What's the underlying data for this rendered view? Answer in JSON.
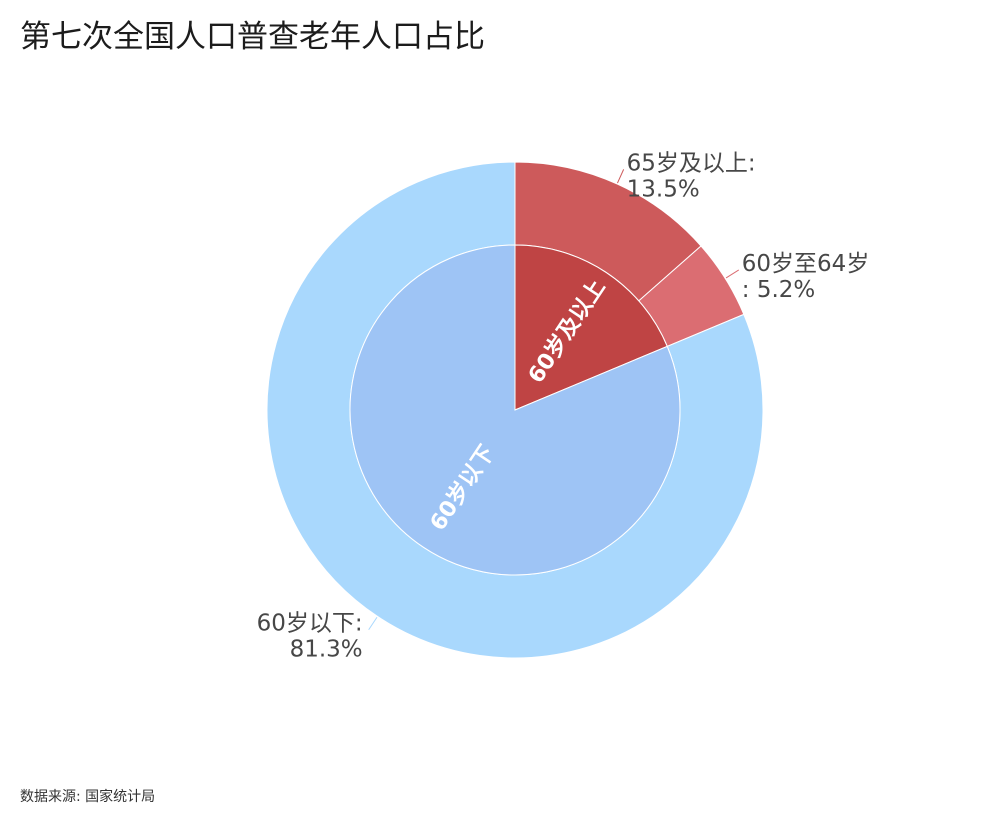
{
  "chart_data": {
    "type": "pie",
    "title": "第七次全国人口普查老年人口占比",
    "inner": [
      {
        "name": "60岁及以上",
        "value": 18.7,
        "color": "#bf4444"
      },
      {
        "name": "60岁以下",
        "value": 81.3,
        "color": "#9ec4f5"
      }
    ],
    "outer": [
      {
        "value": 13.5,
        "label": [
          "65岁及以上:",
          "13.5%"
        ],
        "color": "#cd5a5b"
      },
      {
        "value": 5.2,
        "label": [
          "60岁至64岁",
          ": 5.2%"
        ],
        "color": "#db6d72"
      },
      {
        "value": 81.3,
        "label": [
          "60岁以下:",
          "81.3%"
        ],
        "color": "#a9d8fd"
      }
    ],
    "label_color": "#474747",
    "inner_label_color": "#ffffff",
    "slice_border_color": "#ffffff"
  },
  "source": "数据来源: 国家统计局"
}
